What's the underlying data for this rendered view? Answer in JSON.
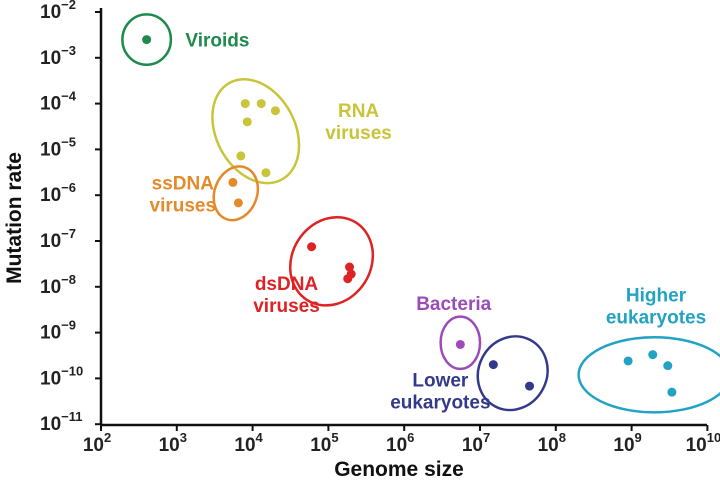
{
  "chart_data": {
    "type": "scatter",
    "title": "",
    "xlabel": "Genome size",
    "ylabel": "Mutation rate",
    "xscale": "log",
    "yscale": "log",
    "xlim": [
      100,
      10000000000
    ],
    "ylim": [
      1e-11,
      0.01
    ],
    "x_ticks": [
      {
        "value": 100,
        "base": "10",
        "exp": "2"
      },
      {
        "value": 1000,
        "base": "10",
        "exp": "3"
      },
      {
        "value": 10000,
        "base": "10",
        "exp": "4"
      },
      {
        "value": 100000,
        "base": "10",
        "exp": "5"
      },
      {
        "value": 1000000,
        "base": "10",
        "exp": "6"
      },
      {
        "value": 10000000,
        "base": "10",
        "exp": "7"
      },
      {
        "value": 100000000,
        "base": "10",
        "exp": "8"
      },
      {
        "value": 1000000000,
        "base": "10",
        "exp": "9"
      },
      {
        "value": 10000000000,
        "base": "10",
        "exp": "10"
      }
    ],
    "y_ticks": [
      {
        "value": 0.01,
        "base": "10",
        "exp": "−2"
      },
      {
        "value": 0.001,
        "base": "10",
        "exp": "−3"
      },
      {
        "value": 0.0001,
        "base": "10",
        "exp": "−4"
      },
      {
        "value": 1e-05,
        "base": "10",
        "exp": "−5"
      },
      {
        "value": 1e-06,
        "base": "10",
        "exp": "−6"
      },
      {
        "value": 1e-07,
        "base": "10",
        "exp": "−7"
      },
      {
        "value": 1e-08,
        "base": "10",
        "exp": "−8"
      },
      {
        "value": 1e-09,
        "base": "10",
        "exp": "−9"
      },
      {
        "value": 1e-10,
        "base": "10",
        "exp": "−10"
      },
      {
        "value": 1e-11,
        "base": "10",
        "exp": "−11"
      }
    ],
    "groups": [
      {
        "name": "Viroids",
        "label_lines": [
          "Viroids"
        ],
        "label_anchor": "start",
        "color": "#1e8a4c",
        "points": [
          [
            400,
            0.0025
          ]
        ],
        "ellipse": {
          "cx": 400,
          "cy": 0.0025,
          "rx_dec": 0.32,
          "ry_dec": 0.55,
          "angle": 0
        },
        "label_pos": [
          1300,
          0.0025
        ]
      },
      {
        "name": "RNA viruses",
        "label_lines": [
          "RNA",
          "viruses"
        ],
        "label_anchor": "middle",
        "color": "#c9c43a",
        "points": [
          [
            8000,
            0.0001
          ],
          [
            13000,
            0.0001
          ],
          [
            8500,
            4e-05
          ],
          [
            20000,
            7e-05
          ],
          [
            7000,
            7.2e-06
          ],
          [
            15000,
            3.1e-06
          ]
        ],
        "ellipse": {
          "cx": 11000,
          "cy": 2.5e-05,
          "rx_dec": 0.52,
          "ry_dec": 1.2,
          "angle": -28
        },
        "label_pos": [
          250000,
          4.2e-05
        ]
      },
      {
        "name": "ssDNA viruses",
        "label_lines": [
          "ssDNA",
          "viruses"
        ],
        "label_anchor": "middle",
        "color": "#e58a2b",
        "points": [
          [
            5500,
            1.9e-06
          ],
          [
            6500,
            6.8e-07
          ]
        ],
        "ellipse": {
          "cx": 6000,
          "cy": 1.1e-06,
          "rx_dec": 0.28,
          "ry_dec": 0.6,
          "angle": 20
        },
        "label_pos": [
          1200,
          1.1e-06
        ]
      },
      {
        "name": "dsDNA viruses",
        "label_lines": [
          "dsDNA",
          "viruses"
        ],
        "label_anchor": "middle",
        "color": "#dd2324",
        "points": [
          [
            60000,
            7.5e-08
          ],
          [
            190000,
            2.7e-08
          ],
          [
            180000,
            1.5e-08
          ],
          [
            200000,
            1.9e-08
          ]
        ],
        "ellipse": {
          "cx": 110000,
          "cy": 3.6e-08,
          "rx_dec": 0.52,
          "ry_dec": 1.0,
          "angle": 32
        },
        "label_pos": [
          28000,
          7e-09
        ]
      },
      {
        "name": "Bacteria",
        "label_lines": [
          "Bacteria"
        ],
        "label_anchor": "middle",
        "color": "#9b4cb8",
        "points": [
          [
            5500000,
            5.5e-10
          ]
        ],
        "ellipse": {
          "cx": 5500000,
          "cy": 6e-10,
          "rx_dec": 0.26,
          "ry_dec": 0.57,
          "angle": 0
        },
        "label_pos": [
          4500000,
          4.4e-09
        ]
      },
      {
        "name": "Lower eukaryotes",
        "label_lines": [
          "Lower",
          "eukaryotes"
        ],
        "label_anchor": "middle",
        "color": "#343a8b",
        "points": [
          [
            15000000,
            2e-10
          ],
          [
            45000000,
            6.8e-11
          ]
        ],
        "ellipse": {
          "cx": 27000000,
          "cy": 1.3e-10,
          "rx_dec": 0.45,
          "ry_dec": 0.82,
          "angle": 28
        },
        "label_pos": [
          3000000,
          5.5e-11
        ]
      },
      {
        "name": "Higher eukaryotes",
        "label_lines": [
          "Higher",
          "eukaryotes"
        ],
        "label_anchor": "middle",
        "color": "#23a3c4",
        "points": [
          [
            900000000,
            2.4e-10
          ],
          [
            1900000000,
            3.3e-10
          ],
          [
            3000000000,
            1.9e-10
          ],
          [
            3400000000,
            5e-11
          ]
        ],
        "ellipse": {
          "cx": 2000000000,
          "cy": 1.2e-10,
          "rx_dec": 1.0,
          "ry_dec": 0.82,
          "angle": 0
        },
        "label_pos": [
          2100000000,
          3.9e-09
        ]
      }
    ],
    "grid": false,
    "legend": "none"
  }
}
